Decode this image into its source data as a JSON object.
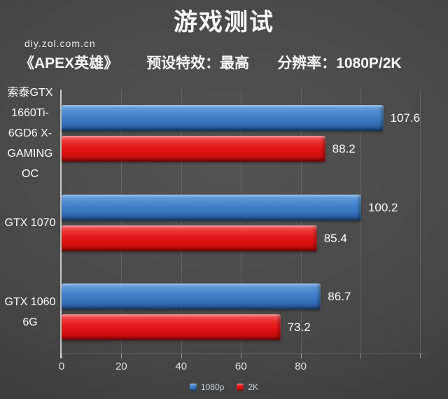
{
  "page": {
    "title": "游戏测试",
    "watermark": "diy.zol.com.cn",
    "subtitle": {
      "game": "《APEX英雄》",
      "preset": "预设特效：最高",
      "resolution": "分辨率：1080P/2K"
    }
  },
  "chart_data": {
    "type": "bar",
    "orientation": "horizontal",
    "title": "游戏测试",
    "subtitle": "《APEX英雄》 预设特效：最高 分辨率：1080P/2K",
    "categories": [
      "索泰GTX 1660Ti-6GD6 X-GAMING OC",
      "GTX 1070",
      "GTX 1060 6G"
    ],
    "series": [
      {
        "name": "1080p",
        "color": "#3e7cc6",
        "values": [
          107.6,
          100.2,
          86.7
        ]
      },
      {
        "name": "2K",
        "color": "#dd1111",
        "values": [
          88.2,
          85.4,
          73.2
        ]
      }
    ],
    "value_labels": true,
    "xlim": [
      0,
      122.7
    ],
    "xticks": [
      0,
      20,
      40,
      60,
      80
    ],
    "gridline_ticks": [
      0,
      20,
      40,
      60,
      80,
      100,
      120
    ],
    "grid": true,
    "legend_position": "bottom",
    "background_color": "#474747",
    "text_color": "#ffffff"
  }
}
